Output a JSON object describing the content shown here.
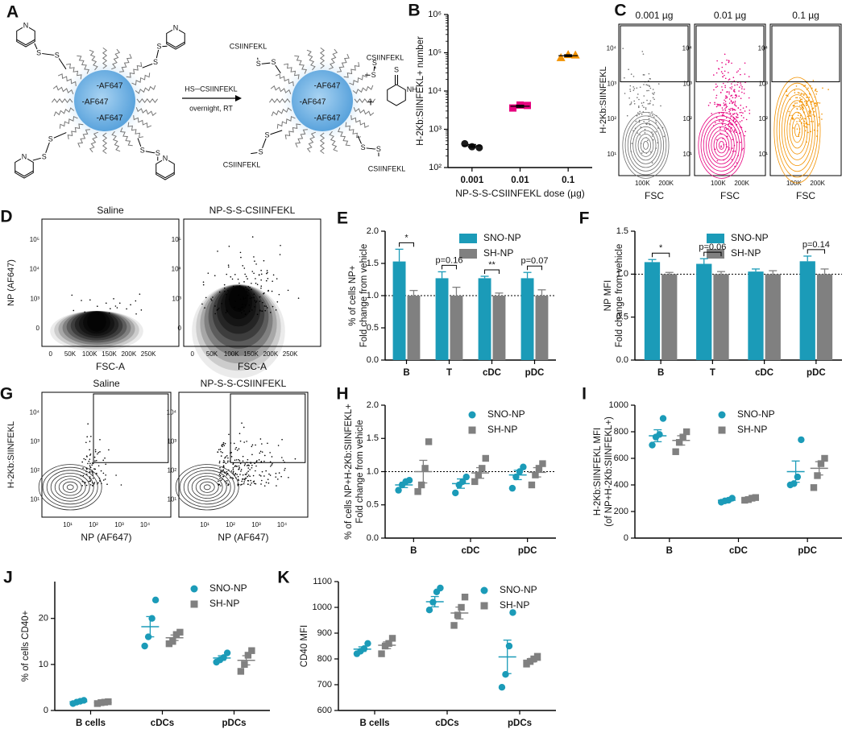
{
  "schematic": {
    "panel": "A",
    "left_labels": [
      "-AF647",
      "-AF647",
      "-AF647"
    ],
    "right_labels": [
      "-AF647",
      "-AF647",
      "-AF647"
    ],
    "reagent": "HS─CSIINFEKL",
    "condition": "overnight, RT",
    "plus": "+",
    "peptide_labels": [
      "CSIINFEKL",
      "CSIINFEKL",
      "CSIINFEKL",
      "CSIINFEKL"
    ],
    "sulfur": "S",
    "ring_atom": "N",
    "amine": "NH"
  },
  "flow_panels": [
    {
      "panel": "C",
      "ylabel": "H-2Kb:SIINFEKL",
      "xticks": [
        "100K",
        "200K"
      ],
      "yticks": [
        "10¹",
        "10²",
        "10³",
        "10⁴"
      ],
      "style": "contour",
      "plots": [
        {
          "title": "0.001 µg",
          "xlabel": "FSC",
          "color": "#6e6e6e"
        },
        {
          "title": "0.01 µg",
          "xlabel": "FSC",
          "color": "#e6007e"
        },
        {
          "title": "0.1 µg",
          "xlabel": "FSC",
          "color": "#f39200"
        }
      ]
    },
    {
      "panel": "D",
      "ylabel": "NP (AF647)",
      "xticks": [
        "0",
        "50K",
        "100K",
        "150K",
        "200K",
        "250K"
      ],
      "yticks": [
        "0",
        "10³",
        "10⁴",
        "10⁵"
      ],
      "style": "density",
      "plots": [
        {
          "title": "Saline",
          "xlabel": "FSC-A",
          "color": "#000000"
        },
        {
          "title": "NP-S-S-CSIINFEKL",
          "xlabel": "FSC-A",
          "color": "#000000"
        }
      ]
    },
    {
      "panel": "G",
      "ylabel": "H-2Kb:SIINFEKL",
      "xticks": [
        "10¹",
        "10²",
        "10³",
        "10⁴"
      ],
      "yticks": [
        "10¹",
        "10²",
        "10³",
        "10⁴"
      ],
      "style": "gate",
      "plots": [
        {
          "title": "Saline",
          "xlabel": "NP (AF647)",
          "color": "#000000"
        },
        {
          "title": "NP-S-S-CSIINFEKL",
          "xlabel": "NP (AF647)",
          "color": "#000000"
        }
      ]
    }
  ],
  "chart_data": [
    {
      "panel": "B",
      "type": "scatter",
      "log_scale": true,
      "ylabel": "H-2Kb:SIINFEKL+ number",
      "xlabel": "NP-S-S-CSIINFEKL dose (µg)",
      "categories": [
        "0.001",
        "0.01",
        "0.1"
      ],
      "points": [
        [
          420,
          350,
          330
        ],
        [
          3600,
          4300,
          4200
        ],
        [
          75000,
          90000,
          88000
        ]
      ],
      "means": [
        370,
        4000,
        84000
      ],
      "errors": [
        30,
        250,
        4500
      ],
      "colors": [
        "#1a1a1a",
        "#e6007e",
        "#f39200"
      ],
      "markers": [
        "circle",
        "square",
        "triangle"
      ],
      "ylim": [
        100,
        1000000
      ],
      "yticks": [
        {
          "value": 100,
          "label": "10²"
        },
        {
          "value": 1000,
          "label": "10³"
        },
        {
          "value": 10000,
          "label": "10⁴"
        },
        {
          "value": 100000,
          "label": "10⁵"
        },
        {
          "value": 1000000,
          "label": "10⁶"
        }
      ]
    },
    {
      "panel": "E",
      "type": "bar",
      "ylabel": [
        "% of cells NP+",
        "Fold change from vehicle"
      ],
      "categories": [
        "B",
        "T",
        "cDC",
        "pDC"
      ],
      "series": [
        {
          "name": "SNO-NP",
          "color": "#1b9bb8",
          "values": [
            1.53,
            1.27,
            1.27,
            1.27
          ],
          "errors": [
            0.19,
            0.1,
            0.03,
            0.09
          ]
        },
        {
          "name": "SH-NP",
          "color": "#808080",
          "values": [
            1.0,
            1.0,
            1.0,
            1.0
          ],
          "errors": [
            0.08,
            0.13,
            0.04,
            0.09
          ]
        }
      ],
      "annotations": [
        "*",
        "p=0.16",
        "**",
        "p=0.07"
      ],
      "ylim": [
        0,
        2
      ],
      "reference_line": 1,
      "yticks": [
        {
          "value": 0,
          "label": "0.0"
        },
        {
          "value": 0.5,
          "label": "0.5"
        },
        {
          "value": 1,
          "label": "1.0"
        },
        {
          "value": 1.5,
          "label": "1.5"
        },
        {
          "value": 2,
          "label": "2.0"
        }
      ]
    },
    {
      "panel": "F",
      "type": "bar",
      "ylabel": [
        "NP MFI",
        "Fold change from vehicle"
      ],
      "categories": [
        "B",
        "T",
        "cDC",
        "pDC"
      ],
      "series": [
        {
          "name": "SNO-NP",
          "color": "#1b9bb8",
          "values": [
            1.14,
            1.12,
            1.03,
            1.15
          ],
          "errors": [
            0.03,
            0.06,
            0.03,
            0.06
          ]
        },
        {
          "name": "SH-NP",
          "color": "#808080",
          "values": [
            1.0,
            1.0,
            1.0,
            1.0
          ],
          "errors": [
            0.02,
            0.03,
            0.04,
            0.06
          ]
        }
      ],
      "annotations": [
        "*",
        "p=0.06",
        null,
        "p=0.14"
      ],
      "ylim": [
        0,
        1.5
      ],
      "reference_line": 1,
      "yticks": [
        {
          "value": 0,
          "label": "0.0"
        },
        {
          "value": 0.5,
          "label": "0.5"
        },
        {
          "value": 1,
          "label": "1.0"
        },
        {
          "value": 1.5,
          "label": "1.5"
        }
      ]
    },
    {
      "panel": "H",
      "type": "dot",
      "ylabel": [
        "% of cells NP+H-2Kb:SIINFEKL+",
        "Fold change from vehicle"
      ],
      "categories": [
        "B",
        "cDC",
        "pDC"
      ],
      "series": [
        {
          "name": "SNO-NP",
          "color": "#1b9bb8",
          "marker": "circle",
          "points": [
            [
              0.72,
              0.8,
              0.85,
              0.87
            ],
            [
              0.68,
              0.8,
              0.85,
              0.92
            ],
            [
              0.75,
              0.92,
              1.0,
              1.07
            ]
          ],
          "means": [
            0.8,
            0.82,
            0.95
          ],
          "errors": [
            0.04,
            0.07,
            0.07
          ]
        },
        {
          "name": "SH-NP",
          "color": "#808080",
          "marker": "square",
          "points": [
            [
              0.7,
              0.8,
              1.05,
              1.45
            ],
            [
              0.85,
              0.95,
              1.05,
              1.2
            ],
            [
              0.8,
              0.95,
              1.05,
              1.12
            ]
          ],
          "means": [
            1.0,
            0.98,
            0.99
          ],
          "errors": [
            0.17,
            0.08,
            0.07
          ]
        }
      ],
      "ylim": [
        0,
        2
      ],
      "reference_line": 1,
      "yticks": [
        {
          "value": 0,
          "label": "0.0"
        },
        {
          "value": 0.5,
          "label": "0.5"
        },
        {
          "value": 1,
          "label": "1.0"
        },
        {
          "value": 1.5,
          "label": "1.5"
        },
        {
          "value": 2,
          "label": "2.0"
        }
      ]
    },
    {
      "panel": "I",
      "type": "dot",
      "ylabel": [
        "H-2Kb:SIINFEKL MFI",
        "(of NP+H-2Kb:SIINFEKL+)"
      ],
      "categories": [
        "B",
        "cDC",
        "pDC"
      ],
      "series": [
        {
          "name": "SNO-NP",
          "color": "#1b9bb8",
          "marker": "circle",
          "points": [
            [
              700,
              760,
              780,
              900
            ],
            [
              270,
              280,
              285,
              300
            ],
            [
              400,
              410,
              460,
              740
            ]
          ],
          "means": [
            770,
            285,
            500
          ],
          "errors": [
            45,
            7,
            80
          ]
        },
        {
          "name": "SH-NP",
          "color": "#808080",
          "marker": "square",
          "points": [
            [
              650,
              720,
              760,
              800
            ],
            [
              285,
              290,
              300,
              305
            ],
            [
              380,
              470,
              560,
              600
            ]
          ],
          "means": [
            735,
            295,
            525
          ],
          "errors": [
            35,
            5,
            50
          ]
        }
      ],
      "ylim": [
        0,
        1000
      ],
      "yticks": [
        0,
        200,
        400,
        600,
        800,
        1000
      ]
    },
    {
      "panel": "J",
      "type": "dot",
      "ylabel": "% of cells CD40+",
      "categories": [
        "B cells",
        "cDCs",
        "pDCs"
      ],
      "series": [
        {
          "name": "SNO-NP",
          "color": "#1b9bb8",
          "marker": "circle",
          "points": [
            [
              1.5,
              1.8,
              2.0,
              2.2
            ],
            [
              14,
              16,
              20,
              24
            ],
            [
              10.5,
              11,
              11.5,
              12.5
            ]
          ],
          "means": [
            1.9,
            18.2,
            11.4
          ],
          "errors": [
            0.2,
            2.2,
            0.5
          ]
        },
        {
          "name": "SH-NP",
          "color": "#808080",
          "marker": "square",
          "points": [
            [
              1.5,
              1.7,
              1.8,
              1.9
            ],
            [
              14.5,
              15,
              16.5,
              17
            ],
            [
              8.5,
              10,
              12,
              13
            ]
          ],
          "means": [
            1.7,
            15.8,
            10.9
          ],
          "errors": [
            0.1,
            0.6,
            1.0
          ]
        }
      ],
      "ylim": [
        0,
        28
      ],
      "yticks": [
        0,
        10,
        20
      ]
    },
    {
      "panel": "K",
      "type": "dot",
      "ylabel": "CD40 MFI",
      "categories": [
        "B cells",
        "cDCs",
        "pDCs"
      ],
      "series": [
        {
          "name": "SNO-NP",
          "color": "#1b9bb8",
          "marker": "circle",
          "points": [
            [
              820,
              830,
              840,
              860
            ],
            [
              990,
              1020,
              1060,
              1075
            ],
            [
              690,
              740,
              850,
              980
            ]
          ],
          "means": [
            838,
            1022,
            808
          ],
          "errors": [
            9,
            20,
            65
          ]
        },
        {
          "name": "SH-NP",
          "color": "#808080",
          "marker": "square",
          "points": [
            [
              820,
              850,
              860,
              880
            ],
            [
              930,
              970,
              1000,
              1040
            ],
            [
              780,
              790,
              800,
              810
            ]
          ],
          "means": [
            853,
            978,
            795
          ],
          "errors": [
            13,
            23,
            7
          ]
        }
      ],
      "ylim": [
        600,
        1100
      ],
      "yticks": [
        600,
        700,
        800,
        900,
        1000,
        1100
      ]
    }
  ]
}
